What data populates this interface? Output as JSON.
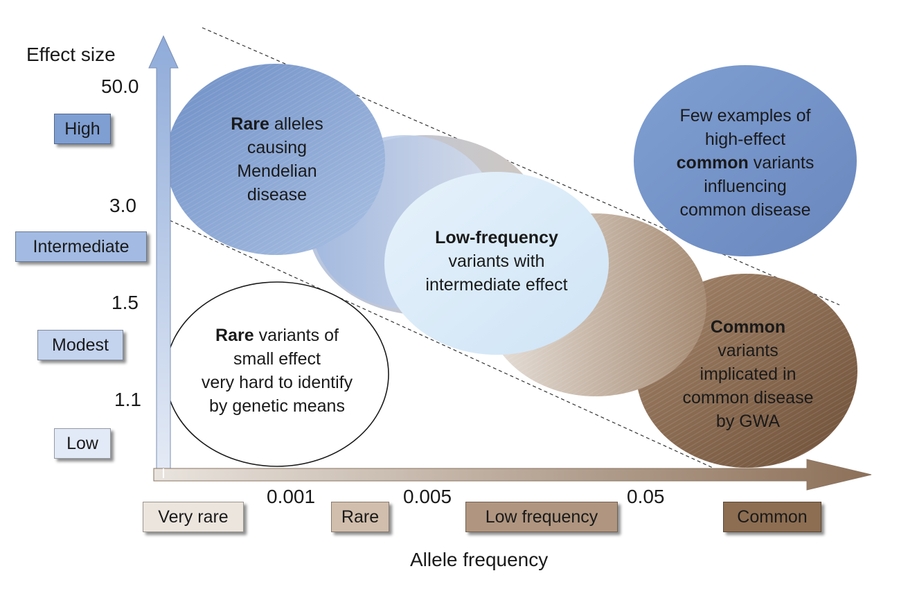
{
  "y_axis": {
    "title": "Effect size",
    "ticks": [
      "50.0",
      "3.0",
      "1.5",
      "1.1"
    ],
    "categories": [
      "High",
      "Intermediate",
      "Modest",
      "Low"
    ]
  },
  "x_axis": {
    "title": "Allele frequency",
    "ticks": [
      "0.001",
      "0.005",
      "0.05"
    ],
    "categories": [
      "Very rare",
      "Rare",
      "Low frequency",
      "Common"
    ]
  },
  "bubbles": {
    "rare_mendelian": {
      "bold": "Rare",
      "rest": " alleles",
      "l2": "causing",
      "l3": "Mendelian",
      "l4": "disease"
    },
    "low_frequency": {
      "bold": "Low-frequency",
      "l2": "variants with",
      "l3": "intermediate effect"
    },
    "high_effect_common": {
      "l1": "Few examples of",
      "l2": "high-effect",
      "bold": "common",
      "rest": " variants",
      "l4": "influencing",
      "l5": "common disease"
    },
    "rare_small": {
      "bold": "Rare",
      "rest": " variants of",
      "l2": "small effect",
      "l3": "very hard to identify",
      "l4": "by genetic means"
    },
    "common_gwa": {
      "bold": "Common",
      "l2": "variants",
      "l3": "implicated in",
      "l4": "common disease",
      "l5": "by GWA"
    }
  },
  "colors": {
    "blue_dark": "#7c99cc",
    "blue_light": "#d9ecf8",
    "brown_dark": "#8a6a4e",
    "brown_light": "#c9b29d",
    "axis_blue": "#94b2de",
    "axis_brown": "#9a7e66"
  }
}
